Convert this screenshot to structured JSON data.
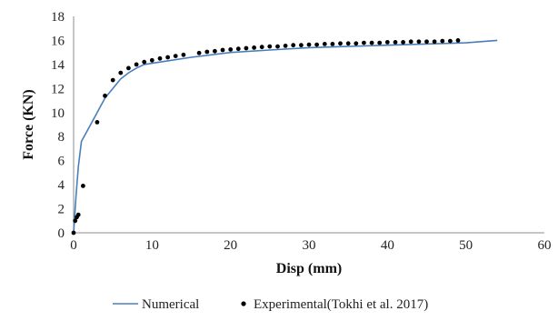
{
  "chart_data": {
    "type": "scatter",
    "xlabel": "Disp (mm)",
    "ylabel": "Force (KN)",
    "xlim": [
      0,
      60
    ],
    "ylim": [
      0,
      18
    ],
    "xticks": [
      0,
      10,
      20,
      30,
      40,
      50,
      60
    ],
    "yticks": [
      0,
      2,
      4,
      6,
      8,
      10,
      12,
      14,
      16,
      18
    ],
    "grid": false,
    "legend_position": "bottom",
    "series": [
      {
        "name": "Numerical",
        "kind": "line",
        "color": "#4a7ebb",
        "x": [
          0,
          0.3,
          0.6,
          1.0,
          2.0,
          3.0,
          4.0,
          5.0,
          6.0,
          7.0,
          8.0,
          9.0,
          10.0,
          12.0,
          15.0,
          20.0,
          25.0,
          30.0,
          40.0,
          50.0,
          54.0
        ],
        "y": [
          0,
          3.0,
          5.5,
          7.6,
          8.8,
          10.0,
          11.2,
          12.0,
          12.8,
          13.3,
          13.7,
          14.0,
          14.1,
          14.3,
          14.6,
          15.0,
          15.2,
          15.4,
          15.6,
          15.8,
          16.0
        ]
      },
      {
        "name": "Experimental(Tokhi et al. 2017)",
        "kind": "scatter",
        "color": "#000000",
        "x": [
          0.0,
          0.2,
          0.4,
          0.6,
          1.2,
          3.0,
          4.0,
          5.0,
          6.0,
          7.0,
          8.0,
          9.0,
          10.0,
          11.0,
          12.0,
          13.0,
          14.0,
          16.0,
          17.0,
          18.0,
          19.0,
          20.0,
          21.0,
          22.0,
          23.0,
          24.0,
          25.0,
          26.0,
          27.0,
          28.0,
          29.0,
          30.0,
          31.0,
          32.0,
          33.0,
          34.0,
          35.0,
          36.0,
          37.0,
          38.0,
          39.0,
          40.0,
          41.0,
          42.0,
          43.0,
          44.0,
          45.0,
          46.0,
          47.0,
          48.0,
          49.0
        ],
        "y": [
          0.0,
          1.0,
          1.3,
          1.5,
          3.9,
          9.2,
          11.4,
          12.7,
          13.3,
          13.7,
          14.0,
          14.2,
          14.35,
          14.5,
          14.6,
          14.7,
          14.8,
          14.95,
          15.05,
          15.1,
          15.2,
          15.25,
          15.3,
          15.35,
          15.4,
          15.45,
          15.5,
          15.5,
          15.55,
          15.6,
          15.6,
          15.65,
          15.65,
          15.7,
          15.7,
          15.75,
          15.75,
          15.75,
          15.8,
          15.8,
          15.8,
          15.85,
          15.85,
          15.85,
          15.9,
          15.9,
          15.9,
          15.9,
          15.95,
          15.95,
          16.0
        ]
      }
    ]
  }
}
